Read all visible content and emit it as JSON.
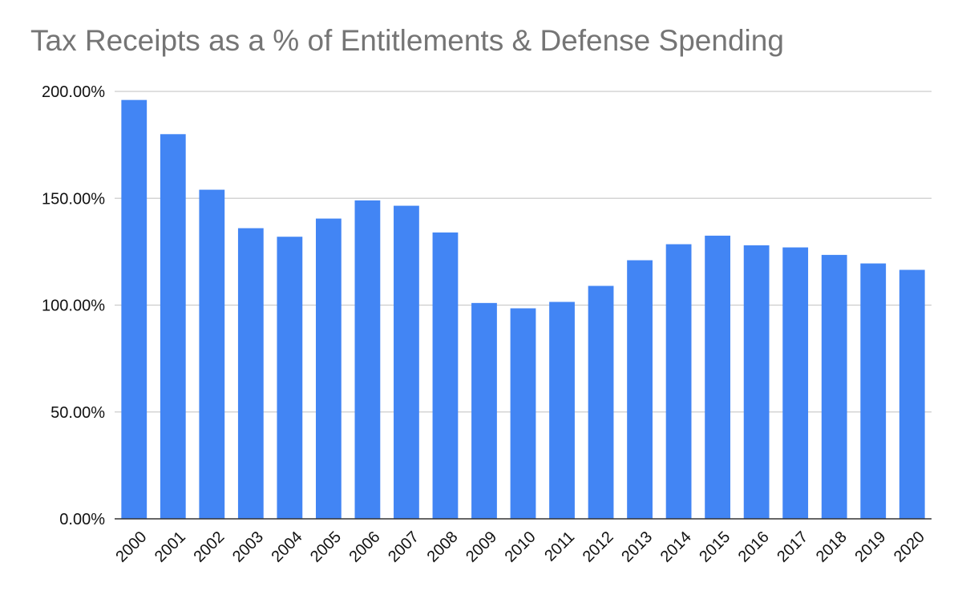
{
  "chart_data": {
    "type": "bar",
    "title": "Tax Receipts as a % of Entitlements & Defense Spending",
    "xlabel": "",
    "ylabel": "",
    "categories": [
      "2000",
      "2001",
      "2002",
      "2003",
      "2004",
      "2005",
      "2006",
      "2007",
      "2008",
      "2009",
      "2010",
      "2011",
      "2012",
      "2013",
      "2014",
      "2015",
      "2016",
      "2017",
      "2018",
      "2019",
      "2020"
    ],
    "values": [
      196,
      180,
      154,
      136,
      132,
      140.5,
      149,
      146.5,
      134,
      101,
      98.5,
      101.5,
      109,
      121,
      128.5,
      132.5,
      128,
      127,
      123.5,
      119.5,
      116.5
    ],
    "ylim": [
      0,
      200
    ],
    "yticks": [
      0,
      50,
      100,
      150,
      200
    ],
    "ytick_labels": [
      "0.00%",
      "50.00%",
      "100.00%",
      "150.00%",
      "200.00%"
    ],
    "grid": true,
    "legend": "none",
    "bar_color": "#4285f4",
    "grid_color": "#cccccc",
    "axis_color": "#333333"
  }
}
